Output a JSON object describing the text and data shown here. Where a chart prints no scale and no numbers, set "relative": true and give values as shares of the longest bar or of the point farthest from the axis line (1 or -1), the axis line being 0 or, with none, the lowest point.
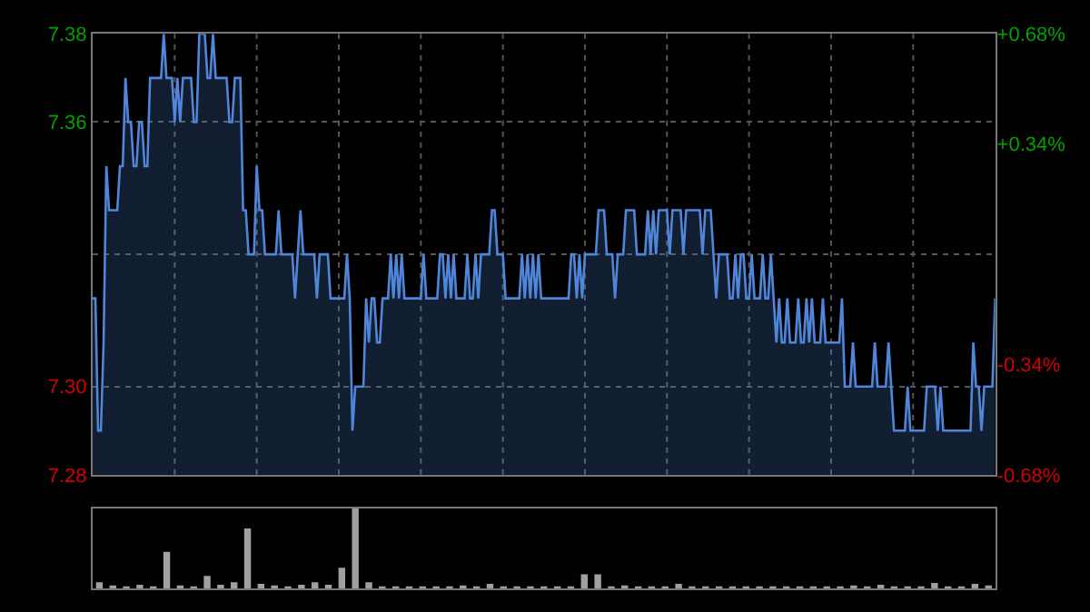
{
  "chart_data": [
    {
      "type": "area",
      "color": "#4f86d9",
      "categories": [
        null,
        null,
        null,
        null,
        null,
        null,
        null,
        null,
        null,
        null,
        null,
        null,
        null,
        null,
        null,
        null,
        null,
        null,
        null,
        null,
        null,
        null,
        null,
        null,
        null,
        null,
        null,
        null,
        null,
        null,
        null,
        null,
        null,
        null,
        null,
        null,
        null,
        null,
        null,
        null,
        null,
        null,
        null,
        null,
        null,
        null,
        null,
        null,
        null,
        null,
        null,
        null,
        null,
        null,
        null,
        null,
        null,
        null,
        null,
        null,
        null,
        null,
        null,
        null,
        null,
        null,
        null,
        null,
        null,
        null,
        null,
        null,
        null,
        null,
        null,
        null,
        null,
        null,
        null,
        null,
        null,
        null,
        null,
        null,
        null,
        null,
        null,
        null,
        null,
        null,
        null,
        null,
        null,
        null,
        null,
        null,
        null,
        null,
        null,
        null,
        null,
        null,
        null,
        null,
        null,
        null,
        null,
        null,
        null,
        null,
        null,
        null,
        null,
        null,
        null,
        null,
        null,
        null,
        null,
        null,
        null,
        null,
        null,
        null,
        null,
        null,
        null,
        null,
        null,
        null,
        null,
        null,
        null,
        null,
        null,
        null,
        null,
        null,
        null,
        null,
        null,
        null,
        null,
        null,
        null,
        null,
        null,
        null,
        null,
        null,
        null,
        null,
        null,
        null,
        null,
        null,
        null,
        null,
        null,
        null,
        null,
        null,
        null,
        null,
        null,
        null,
        null,
        null,
        null,
        null,
        null,
        null,
        null,
        null,
        null,
        null,
        null,
        null,
        null,
        null,
        null,
        null,
        null,
        null,
        null,
        null,
        null,
        null,
        null,
        null,
        null,
        null,
        null,
        null,
        null,
        null,
        null,
        null,
        null,
        null,
        null,
        null,
        null,
        null,
        null,
        null,
        null,
        null,
        null,
        null,
        null,
        null,
        null,
        null,
        null,
        null,
        null,
        null,
        null,
        null,
        null,
        null,
        null,
        null,
        null,
        null,
        null,
        null,
        null,
        null,
        null,
        null,
        null,
        null,
        null,
        null,
        null,
        null,
        null,
        null,
        null,
        null,
        null,
        null,
        null,
        null,
        null,
        null,
        null,
        null,
        null,
        null,
        null,
        null,
        null,
        null,
        null,
        null,
        null,
        null,
        null,
        null,
        null,
        null,
        null,
        null,
        null,
        null,
        null,
        null,
        null,
        null,
        null,
        null,
        null,
        null,
        null,
        null,
        null,
        null,
        null,
        null,
        null,
        null,
        null,
        null,
        null,
        null,
        null,
        null,
        null,
        null,
        null,
        null,
        null,
        null,
        null,
        null,
        null,
        null,
        null,
        null,
        null,
        null,
        null,
        null,
        null,
        null,
        null,
        null,
        null,
        null,
        null,
        null,
        null,
        null,
        null,
        null,
        null,
        null,
        null,
        null,
        null,
        null,
        null,
        null,
        null,
        null,
        null,
        null,
        null
      ],
      "values": [
        7.32,
        7.32,
        7.29,
        7.29,
        7.31,
        7.35,
        7.34,
        7.34,
        7.34,
        7.34,
        7.35,
        7.35,
        7.37,
        7.36,
        7.36,
        7.35,
        7.35,
        7.36,
        7.36,
        7.35,
        7.35,
        7.37,
        7.37,
        7.37,
        7.37,
        7.37,
        7.38,
        7.37,
        7.37,
        7.37,
        7.36,
        7.37,
        7.36,
        7.37,
        7.37,
        7.37,
        7.37,
        7.36,
        7.36,
        7.38,
        7.38,
        7.38,
        7.37,
        7.37,
        7.38,
        7.37,
        7.37,
        7.37,
        7.37,
        7.37,
        7.36,
        7.36,
        7.37,
        7.37,
        7.37,
        7.34,
        7.34,
        7.33,
        7.33,
        7.33,
        7.35,
        7.34,
        7.34,
        7.33,
        7.33,
        7.33,
        7.33,
        7.33,
        7.34,
        7.33,
        7.33,
        7.33,
        7.33,
        7.33,
        7.32,
        7.33,
        7.34,
        7.33,
        7.33,
        7.33,
        7.33,
        7.33,
        7.32,
        7.33,
        7.33,
        7.33,
        7.33,
        7.32,
        7.32,
        7.32,
        7.32,
        7.32,
        7.32,
        7.33,
        7.32,
        7.29,
        7.3,
        7.3,
        7.3,
        7.3,
        7.32,
        7.31,
        7.32,
        7.32,
        7.31,
        7.31,
        7.32,
        7.32,
        7.32,
        7.33,
        7.32,
        7.33,
        7.32,
        7.33,
        7.32,
        7.32,
        7.32,
        7.32,
        7.32,
        7.32,
        7.32,
        7.33,
        7.32,
        7.32,
        7.32,
        7.32,
        7.32,
        7.33,
        7.33,
        7.32,
        7.33,
        7.32,
        7.33,
        7.32,
        7.32,
        7.32,
        7.32,
        7.33,
        7.32,
        7.32,
        7.33,
        7.32,
        7.33,
        7.33,
        7.33,
        7.33,
        7.34,
        7.34,
        7.33,
        7.33,
        7.33,
        7.32,
        7.32,
        7.32,
        7.32,
        7.32,
        7.32,
        7.33,
        7.32,
        7.33,
        7.32,
        7.33,
        7.32,
        7.33,
        7.32,
        7.32,
        7.32,
        7.32,
        7.32,
        7.32,
        7.32,
        7.32,
        7.32,
        7.32,
        7.32,
        7.33,
        7.33,
        7.32,
        7.33,
        7.32,
        7.33,
        7.33,
        7.33,
        7.33,
        7.33,
        7.34,
        7.34,
        7.34,
        7.33,
        7.33,
        7.33,
        7.32,
        7.33,
        7.33,
        7.33,
        7.34,
        7.34,
        7.34,
        7.34,
        7.33,
        7.33,
        7.33,
        7.33,
        7.34,
        7.33,
        7.34,
        7.33,
        7.34,
        7.34,
        7.34,
        7.34,
        7.33,
        7.34,
        7.34,
        7.34,
        7.34,
        7.33,
        7.34,
        7.34,
        7.34,
        7.34,
        7.34,
        7.34,
        7.33,
        7.34,
        7.34,
        7.34,
        7.33,
        7.32,
        7.33,
        7.33,
        7.33,
        7.33,
        7.32,
        7.32,
        7.33,
        7.32,
        7.33,
        7.33,
        7.32,
        7.32,
        7.33,
        7.32,
        7.32,
        7.32,
        7.33,
        7.32,
        7.32,
        7.33,
        7.32,
        7.31,
        7.32,
        7.31,
        7.31,
        7.32,
        7.31,
        7.31,
        7.31,
        7.32,
        7.31,
        7.31,
        7.32,
        7.31,
        7.32,
        7.31,
        7.31,
        7.31,
        7.32,
        7.31,
        7.31,
        7.31,
        7.31,
        7.31,
        7.31,
        7.32,
        7.3,
        7.3,
        7.3,
        7.31,
        7.3,
        7.3,
        7.3,
        7.3,
        7.3,
        7.3,
        7.3,
        7.31,
        7.3,
        7.3,
        7.3,
        7.3,
        7.31,
        7.3,
        7.29,
        7.29,
        7.29,
        7.29,
        7.29,
        7.3,
        7.29,
        7.29,
        7.29,
        7.29,
        7.29,
        7.29,
        7.3,
        7.3,
        7.3,
        7.3,
        7.29,
        7.3,
        7.29,
        7.29,
        7.29,
        7.29,
        7.29,
        7.29,
        7.29,
        7.29,
        7.29,
        7.29,
        7.29,
        7.31,
        7.3,
        7.3,
        7.29,
        7.3,
        7.3,
        7.3,
        7.3,
        7.32
      ],
      "ylim": [
        7.28,
        7.38
      ],
      "yticks": [
        7.28,
        {
          "value": 7.3,
          "label": "7.30"
        },
        {
          "value": 7.33,
          "label": null
        },
        7.36,
        7.38
      ],
      "y2lim": [
        -0.68,
        0.68
      ],
      "y2ticks": [
        {
          "value": -0.68,
          "label": "-0.68%"
        },
        {
          "value": -0.34,
          "label": "-0.34%"
        },
        {
          "value": 0.34,
          "label": "+0.34%"
        },
        {
          "value": 0.68,
          "label": "+0.68%"
        }
      ],
      "grid": true
    },
    {
      "type": "bar",
      "color": "#a0a0a0",
      "relative": true,
      "categories": [
        null,
        null,
        null,
        null,
        null,
        null,
        null,
        null,
        null,
        null,
        null,
        null,
        null,
        null,
        null,
        null,
        null,
        null,
        null,
        null,
        null,
        null,
        null,
        null,
        null,
        null,
        null,
        null,
        null,
        null,
        null,
        null,
        null,
        null,
        null,
        null,
        null,
        null,
        null,
        null,
        null,
        null,
        null,
        null,
        null,
        null,
        null,
        null,
        null,
        null,
        null,
        null,
        null,
        null,
        null,
        null,
        null,
        null,
        null,
        null,
        null,
        null,
        null,
        null,
        null,
        null,
        null
      ],
      "values": [
        0.08,
        0.04,
        0.03,
        0.05,
        0.03,
        0.46,
        0.04,
        0.03,
        0.16,
        0.05,
        0.08,
        0.75,
        0.06,
        0.04,
        0.03,
        0.05,
        0.08,
        0.05,
        0.26,
        1.0,
        0.08,
        0.03,
        0.03,
        0.03,
        0.03,
        0.03,
        0.03,
        0.04,
        0.03,
        0.06,
        0.03,
        0.03,
        0.03,
        0.03,
        0.03,
        0.03,
        0.18,
        0.18,
        0.03,
        0.04,
        0.03,
        0.03,
        0.03,
        0.06,
        0.03,
        0.03,
        0.03,
        0.03,
        0.03,
        0.03,
        0.03,
        0.03,
        0.03,
        0.03,
        0.03,
        0.03,
        0.04,
        0.03,
        0.05,
        0.03,
        0.03,
        0.03,
        0.07,
        0.03,
        0.03,
        0.06,
        0.04
      ]
    }
  ]
}
